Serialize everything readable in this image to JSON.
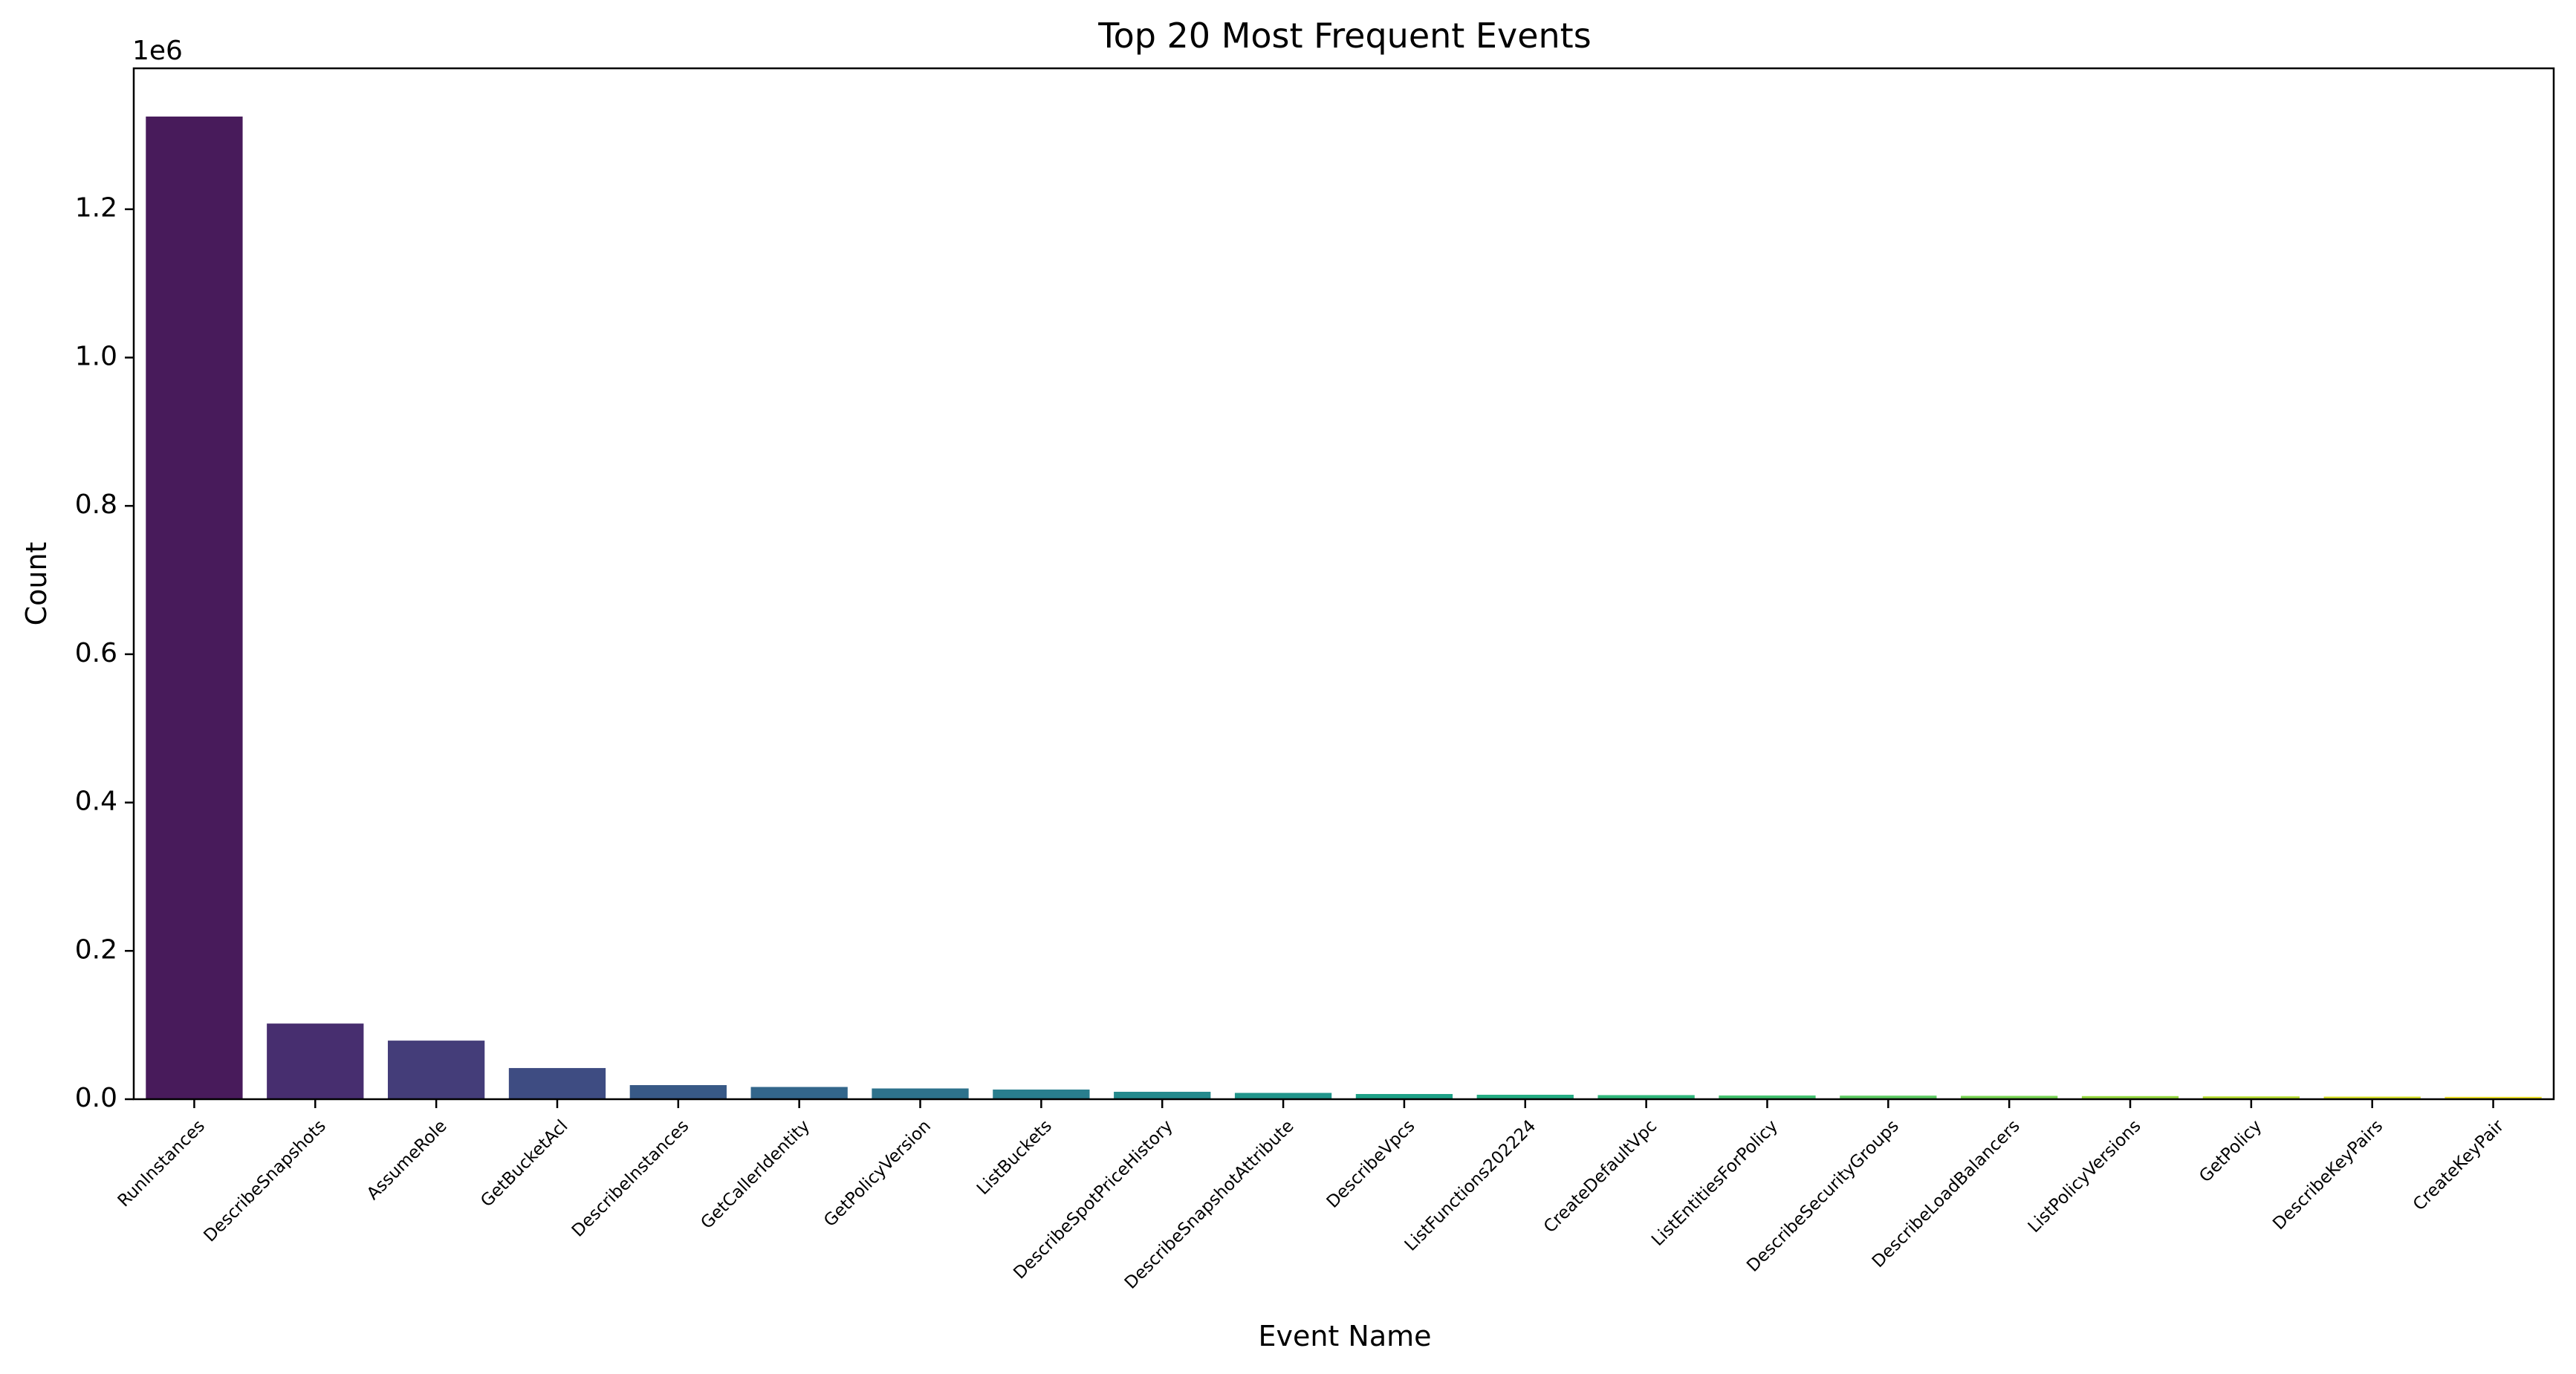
{
  "chart_data": {
    "type": "bar",
    "title": "Top 20 Most Frequent Events",
    "xlabel": "Event Name",
    "ylabel": "Count",
    "y_offset_label": "1e6",
    "ylim": [
      0,
      1390000
    ],
    "yticks": [
      0,
      200000,
      400000,
      600000,
      800000,
      1000000,
      1200000
    ],
    "ytick_labels": [
      "0.0",
      "0.2",
      "0.4",
      "0.6",
      "0.8",
      "1.0",
      "1.2"
    ],
    "categories": [
      "RunInstances",
      "DescribeSnapshots",
      "AssumeRole",
      "GetBucketAcl",
      "DescribeInstances",
      "GetCallerIdentity",
      "GetPolicyVersion",
      "ListBuckets",
      "DescribeSpotPriceHistory",
      "DescribeSnapshotAttribute",
      "DescribeVpcs",
      "ListFunctions202224",
      "CreateDefaultVpc",
      "ListEntitiesForPolicy",
      "DescribeSecurityGroups",
      "DescribeLoadBalancers",
      "ListPolicyVersions",
      "GetPolicy",
      "DescribeKeyPairs",
      "CreateKeyPair"
    ],
    "values": [
      1325000,
      102000,
      79000,
      42000,
      19000,
      16500,
      14500,
      13000,
      10000,
      8500,
      7000,
      6000,
      5500,
      5000,
      4800,
      4500,
      4200,
      3800,
      3500,
      3200
    ],
    "colors": [
      "#481b5b",
      "#472e6f",
      "#443d79",
      "#3e4c82",
      "#385986",
      "#33668b",
      "#2e728c",
      "#297e8e",
      "#258a8d",
      "#21958b",
      "#1ea288",
      "#24ac83",
      "#30b77b",
      "#44c26f",
      "#5dcb62",
      "#79d453",
      "#97d940",
      "#b8de2f",
      "#d8e224",
      "#f1e424"
    ],
    "grid": false,
    "legend": "none"
  }
}
